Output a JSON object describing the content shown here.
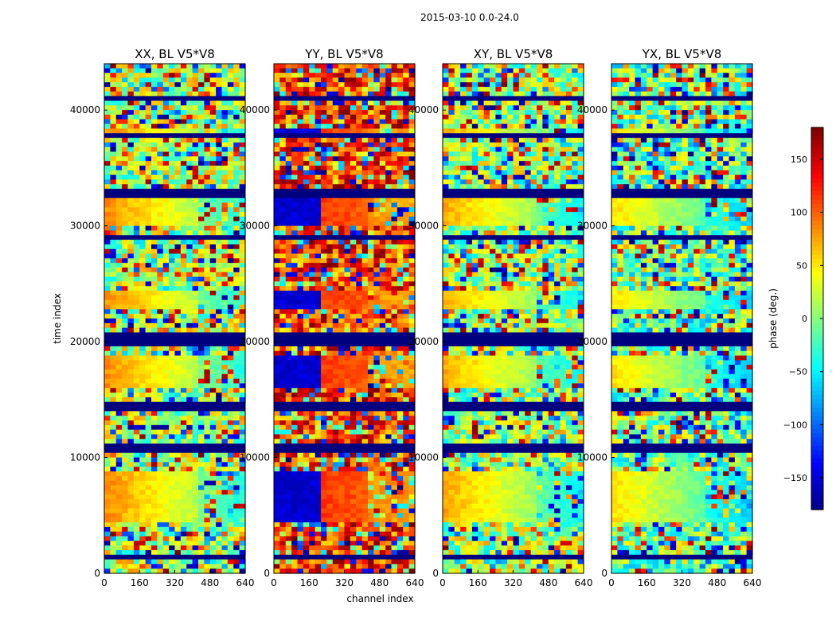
{
  "figure": {
    "suptitle": "2015-03-10 0.0-24.0"
  },
  "chart_data": [
    {
      "type": "heatmap",
      "title": "XX, BL V5*V8",
      "xlabel": "",
      "ylabel": "time index",
      "xlim": [
        0,
        640
      ],
      "ylim": [
        0,
        44000
      ],
      "x_ticks": [
        0,
        160,
        320,
        480,
        640
      ],
      "y_ticks": [
        0,
        10000,
        20000,
        30000,
        40000
      ],
      "mean_phase_deg": 20,
      "feature": "left-yellow-right-cyan"
    },
    {
      "type": "heatmap",
      "title": "YY, BL V5*V8",
      "xlabel": "channel index",
      "ylabel": "",
      "xlim": [
        0,
        640
      ],
      "ylim": [
        0,
        44000
      ],
      "x_ticks": [
        0,
        160,
        320,
        480,
        640
      ],
      "y_ticks": [
        0,
        10000,
        20000,
        30000,
        40000
      ],
      "mean_phase_deg": 120,
      "feature": "blue-then-red-orange"
    },
    {
      "type": "heatmap",
      "title": "XY, BL V5*V8",
      "xlabel": "",
      "ylabel": "",
      "xlim": [
        0,
        640
      ],
      "ylim": [
        0,
        44000
      ],
      "x_ticks": [
        0,
        160,
        320,
        480,
        640
      ],
      "y_ticks": [
        0,
        10000,
        20000,
        30000,
        40000
      ],
      "mean_phase_deg": 10,
      "feature": "yellow-green-cyan"
    },
    {
      "type": "heatmap",
      "title": "YX, BL V5*V8",
      "xlabel": "",
      "ylabel": "",
      "xlim": [
        0,
        640
      ],
      "ylim": [
        0,
        44000
      ],
      "x_ticks": [
        0,
        160,
        320,
        480,
        640
      ],
      "y_ticks": [
        0,
        10000,
        20000,
        30000,
        40000
      ],
      "mean_phase_deg": -10,
      "feature": "green-cyan"
    }
  ],
  "colorbar": {
    "label": "phase (deg.)",
    "ticks": [
      150,
      100,
      50,
      0,
      -50,
      -100,
      -150
    ],
    "range": [
      -180,
      180
    ],
    "colormap": "jet"
  },
  "colors": {
    "masked": "#00007f"
  }
}
